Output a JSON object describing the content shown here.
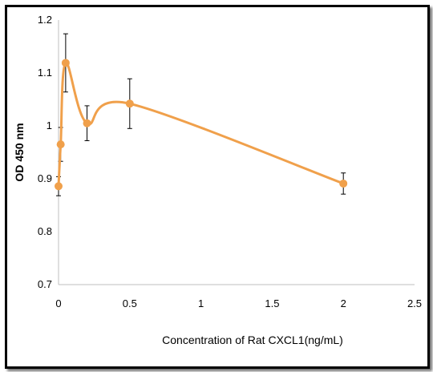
{
  "chart_data": {
    "type": "line",
    "title": "",
    "xlabel": "Concentration of Rat CXCL1(ng/mL)",
    "ylabel": "OD 450 nm",
    "xlim": [
      0,
      2.5
    ],
    "ylim": [
      0.7,
      1.2
    ],
    "x_ticks": [
      "0",
      "0.5",
      "1",
      "1.5",
      "2",
      "2.5"
    ],
    "y_ticks": [
      "0.7",
      "0.8",
      "0.9",
      "1",
      "1.1",
      "1.2"
    ],
    "grid": false,
    "smoothed": true,
    "series": [
      {
        "x": [
          0,
          0.015,
          0.05,
          0.2,
          0.5,
          2
        ],
        "y": [
          0.886,
          0.965,
          1.119,
          1.005,
          1.042,
          0.891
        ],
        "error": [
          0.018,
          0.032,
          0.055,
          0.033,
          0.047,
          0.02
        ],
        "color": "#f0a04b"
      }
    ]
  }
}
